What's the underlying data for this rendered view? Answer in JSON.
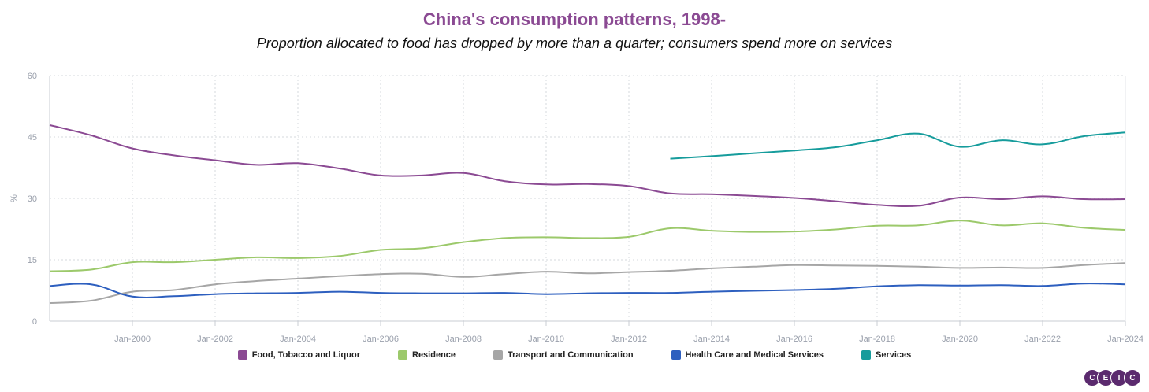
{
  "title": "China's consumption patterns, 1998-",
  "subtitle": "Proportion allocated to food has dropped by more than a quarter; consumers spend more on services",
  "logo": [
    "C",
    "E",
    "I",
    "C"
  ],
  "chart_data": {
    "type": "line",
    "title": "China's consumption patterns, 1998-",
    "subtitle": "Proportion allocated to food has dropped by more than a quarter; consumers spend more on services",
    "ylabel": "%",
    "ylim": [
      0,
      60
    ],
    "yticks": [
      0,
      15,
      30,
      45,
      60
    ],
    "xlim": [
      1998,
      2024
    ],
    "xticks": [
      "Jan-2000",
      "Jan-2002",
      "Jan-2004",
      "Jan-2006",
      "Jan-2008",
      "Jan-2010",
      "Jan-2012",
      "Jan-2014",
      "Jan-2016",
      "Jan-2018",
      "Jan-2020",
      "Jan-2022",
      "Jan-2024"
    ],
    "grid": true,
    "legend_position": "bottom",
    "x": [
      1998,
      1999,
      2000,
      2001,
      2002,
      2003,
      2004,
      2005,
      2006,
      2007,
      2008,
      2009,
      2010,
      2011,
      2012,
      2013,
      2014,
      2015,
      2016,
      2017,
      2018,
      2019,
      2020,
      2021,
      2022,
      2023,
      2024
    ],
    "series": [
      {
        "name": "Food, Tobacco and Liquor",
        "color": "#8b4a93",
        "values": [
          47.9,
          45.4,
          42.2,
          40.5,
          39.3,
          38.2,
          38.6,
          37.3,
          35.6,
          35.6,
          36.2,
          34.2,
          33.4,
          33.5,
          33.0,
          31.2,
          31.0,
          30.6,
          30.1,
          29.3,
          28.4,
          28.2,
          30.2,
          29.8,
          30.5,
          29.8,
          29.8
        ]
      },
      {
        "name": "Residence",
        "color": "#9cc96b",
        "values": [
          12.2,
          12.6,
          14.4,
          14.4,
          15.0,
          15.6,
          15.4,
          15.9,
          17.4,
          17.8,
          19.3,
          20.3,
          20.5,
          20.3,
          20.6,
          22.7,
          22.1,
          21.8,
          21.9,
          22.4,
          23.3,
          23.4,
          24.6,
          23.4,
          23.9,
          22.8,
          22.3
        ]
      },
      {
        "name": "Transport and Communication",
        "color": "#a6a6a6",
        "values": [
          4.4,
          5.0,
          7.2,
          7.6,
          9.0,
          9.8,
          10.4,
          11.0,
          11.5,
          11.6,
          10.8,
          11.5,
          12.1,
          11.7,
          12.0,
          12.3,
          12.9,
          13.3,
          13.7,
          13.6,
          13.5,
          13.3,
          13.0,
          13.1,
          13.0,
          13.7,
          14.2
        ]
      },
      {
        "name": "Health Care and Medical Services",
        "color": "#2d5fbf",
        "values": [
          8.6,
          9.0,
          6.0,
          6.1,
          6.6,
          6.8,
          6.9,
          7.2,
          6.9,
          6.8,
          6.8,
          6.9,
          6.6,
          6.8,
          6.9,
          6.9,
          7.2,
          7.4,
          7.6,
          7.9,
          8.5,
          8.8,
          8.7,
          8.8,
          8.6,
          9.2,
          9.0
        ]
      },
      {
        "name": "Services",
        "color": "#169c9c",
        "values": [
          null,
          null,
          null,
          null,
          null,
          null,
          null,
          null,
          null,
          null,
          null,
          null,
          null,
          null,
          null,
          39.7,
          40.3,
          41.0,
          41.7,
          42.5,
          44.2,
          45.8,
          42.6,
          44.2,
          43.2,
          45.2,
          46.1
        ]
      }
    ]
  }
}
